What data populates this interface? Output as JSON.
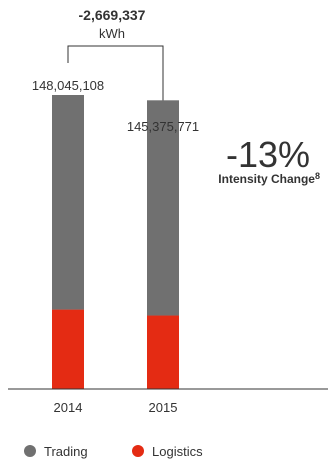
{
  "chart_data": {
    "type": "bar",
    "stacked": true,
    "categories": [
      "2014",
      "2015"
    ],
    "series": [
      {
        "name": "Logistics",
        "values": [
          40000000,
          37000000
        ],
        "color": "#e42b13"
      },
      {
        "name": "Trading",
        "values": [
          108045108,
          108375771
        ],
        "color": "#707070"
      }
    ],
    "totals": [
      "148,045,108",
      "145,375,771"
    ],
    "difference": {
      "value": "-2,669,337",
      "unit": "kWh"
    },
    "intensity": {
      "value": "-13%",
      "label": "Intensity Change",
      "note": "8"
    },
    "ylim": [
      0,
      148045108
    ],
    "legend": {
      "position": "bottom-left",
      "order": [
        "Trading",
        "Logistics"
      ]
    }
  }
}
